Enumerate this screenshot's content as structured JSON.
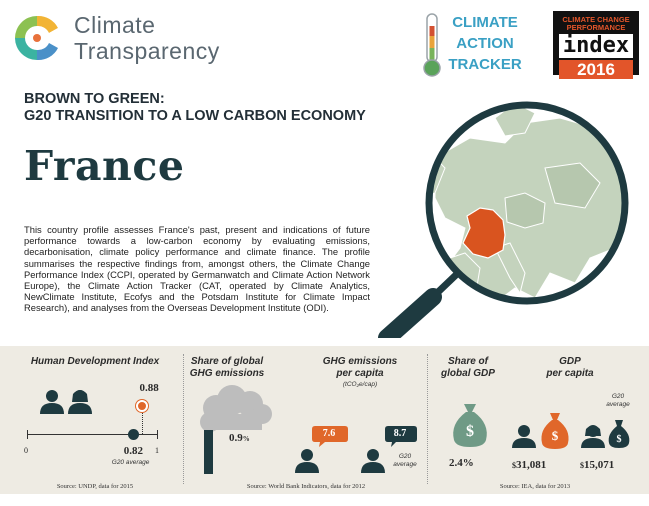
{
  "header": {
    "ct_name_line1": "Climate",
    "ct_name_line2": "Transparency",
    "cat_line1": "CLIMATE",
    "cat_line2": "ACTION",
    "cat_line3": "TRACKER",
    "ccpi_line1": "CLIMATE CHANGE",
    "ccpi_line2": "PERFORMANCE",
    "ccpi_index": "index",
    "ccpi_year": "2016"
  },
  "title": {
    "subtitle_line1": "BROWN TO GREEN:",
    "subtitle_line2": "G20 TRANSITION TO A LOW CARBON ECONOMY",
    "country": "France"
  },
  "intro": "This country profile assesses France's past, present and indications of future performance towards a low-carbon economy by evaluating emissions, decarbonisation, climate policy performance and climate finance. The profile summarises the respective findings from, amongst others, the Climate Change Performance Index (CCPI, operated by Germanwatch and Climate Action Network Europe), the Climate Action Tracker (CAT, operated by Climate Analytics, NewClimate Institute, Ecofys and the Potsdam Institute for Climate Impact Research), and analyses from the Overseas Development Institute (ODI).",
  "hdi": {
    "header": "Human Development Index",
    "country_value": 0.88,
    "country_label": "0.88",
    "g20_value": 0.82,
    "g20_label": "0.82",
    "g20_note": "G20 average",
    "axis_min": "0",
    "axis_max": "1",
    "source": "Source: UNDP, data for 2015"
  },
  "ghg": {
    "share_header_1": "Share of global",
    "share_header_2": "GHG emissions",
    "share_value": "0.9",
    "share_unit": "%",
    "percap_header_1": "GHG emissions",
    "percap_header_2": "per capita",
    "percap_unit": "(tCO₂e/cap)",
    "country_value": "7.6",
    "g20_value": "8.7",
    "g20_note_1": "G20",
    "g20_note_2": "average",
    "source": "Source: World Bank Indicators, data for 2012"
  },
  "gdp": {
    "share_header_1": "Share of",
    "share_header_2": "global GDP",
    "share_value": "2.4%",
    "percap_header_1": "GDP",
    "percap_header_2": "per capita",
    "g20_note_1": "G20",
    "g20_note_2": "average",
    "currency": "$",
    "country_value": "31,081",
    "g20_value": "15,071",
    "source": "Source: IEA, data for 2013"
  },
  "colors": {
    "orange": "#e0672a",
    "teal_dark": "#1e3a40",
    "cat_blue": "#3aa0c4",
    "band": "#eeebe3",
    "map_green": "#c4d3bd",
    "france": "#d9541f"
  }
}
